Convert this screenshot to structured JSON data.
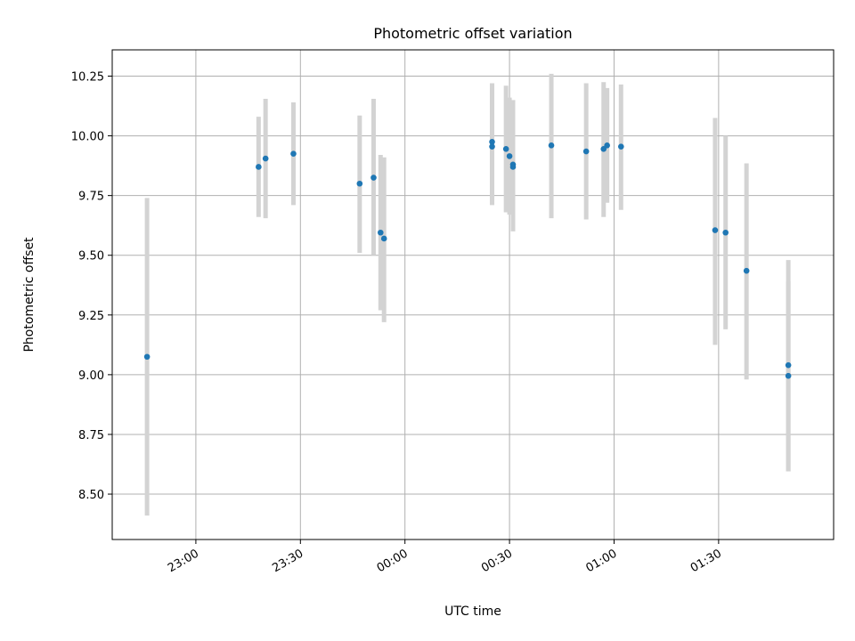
{
  "chart_data": {
    "type": "scatter",
    "title": "Photometric offset variation",
    "xlabel": "UTC time",
    "ylabel": "Photometric offset",
    "x_axis_kind": "time",
    "xlim": [
      "22:36",
      "02:03"
    ],
    "ylim": [
      8.31,
      10.36
    ],
    "xticks": [
      "23:00",
      "23:30",
      "00:00",
      "00:30",
      "01:00",
      "01:30"
    ],
    "yticks": [
      "8.50",
      "8.75",
      "9.00",
      "9.25",
      "9.50",
      "9.75",
      "10.00",
      "10.25"
    ],
    "grid": true,
    "point_color": "#1f77b4",
    "errorbar_color": "#d3d3d3",
    "points": [
      {
        "x": "22:46",
        "y": 9.075,
        "ylo": 8.41,
        "yhi": 9.74
      },
      {
        "x": "23:18",
        "y": 9.87,
        "ylo": 9.66,
        "yhi": 10.08
      },
      {
        "x": "23:20",
        "y": 9.905,
        "ylo": 9.655,
        "yhi": 10.155
      },
      {
        "x": "23:28",
        "y": 9.925,
        "ylo": 9.71,
        "yhi": 10.14
      },
      {
        "x": "23:47",
        "y": 9.8,
        "ylo": 9.51,
        "yhi": 10.085
      },
      {
        "x": "23:51",
        "y": 9.825,
        "ylo": 9.5,
        "yhi": 10.155
      },
      {
        "x": "23:53",
        "y": 9.595,
        "ylo": 9.27,
        "yhi": 9.92
      },
      {
        "x": "23:54",
        "y": 9.57,
        "ylo": 9.22,
        "yhi": 9.91
      },
      {
        "x": "00:25",
        "y": 9.975,
        "ylo": 9.73,
        "yhi": 10.22
      },
      {
        "x": "00:25",
        "y": 9.955,
        "ylo": 9.71,
        "yhi": 10.2
      },
      {
        "x": "00:29",
        "y": 9.945,
        "ylo": 9.68,
        "yhi": 10.21
      },
      {
        "x": "00:30",
        "y": 9.915,
        "ylo": 9.67,
        "yhi": 10.16
      },
      {
        "x": "00:31",
        "y": 9.88,
        "ylo": 9.61,
        "yhi": 10.15
      },
      {
        "x": "00:31",
        "y": 9.87,
        "ylo": 9.6,
        "yhi": 10.14
      },
      {
        "x": "00:42",
        "y": 9.96,
        "ylo": 9.655,
        "yhi": 10.26
      },
      {
        "x": "00:52",
        "y": 9.935,
        "ylo": 9.65,
        "yhi": 10.22
      },
      {
        "x": "00:57",
        "y": 9.945,
        "ylo": 9.66,
        "yhi": 10.225
      },
      {
        "x": "00:58",
        "y": 9.96,
        "ylo": 9.72,
        "yhi": 10.2
      },
      {
        "x": "01:02",
        "y": 9.955,
        "ylo": 9.69,
        "yhi": 10.215
      },
      {
        "x": "01:29",
        "y": 9.605,
        "ylo": 9.125,
        "yhi": 10.075
      },
      {
        "x": "01:32",
        "y": 9.595,
        "ylo": 9.19,
        "yhi": 10.0
      },
      {
        "x": "01:38",
        "y": 9.435,
        "ylo": 8.98,
        "yhi": 9.885
      },
      {
        "x": "01:50",
        "y": 9.04,
        "ylo": 8.595,
        "yhi": 9.48
      },
      {
        "x": "01:50",
        "y": 8.995,
        "ylo": 8.595,
        "yhi": 9.39
      }
    ]
  }
}
